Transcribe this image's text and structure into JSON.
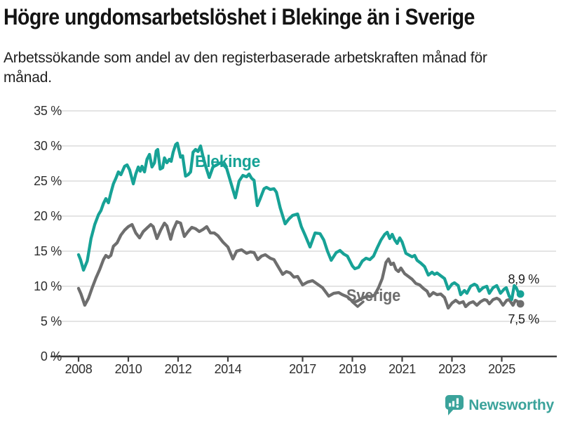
{
  "header": {
    "title": "Högre ungdomsarbetslöshet i Blekinge än i Sverige",
    "subtitle": "Arbetssökande som andel av den registerbaserade arbetskraften månad för månad."
  },
  "colors": {
    "blekinge": "#17A296",
    "sverige": "#6E6E6E",
    "gridline": "#DBDBDB",
    "axis": "#3E3E3E",
    "tick_label": "#2E2E2E",
    "end_label": "#1C1C1C",
    "brand_teal": "#3BA39B"
  },
  "chart_data": {
    "type": "line",
    "unit": "%",
    "grid": "horizontal-only",
    "x_axis": {
      "ticks": [
        2008,
        2010,
        2012,
        2014,
        2017,
        2019,
        2021,
        2023,
        2025
      ],
      "range_years": [
        2008,
        2025.75
      ]
    },
    "y_axis": {
      "tick_values": [
        0,
        5,
        10,
        15,
        20,
        25,
        30,
        35
      ],
      "tick_labels": [
        "0 %",
        "5 %",
        "10 %",
        "15 %",
        "20 %",
        "25 %",
        "30 %",
        "35 %"
      ],
      "range": [
        0,
        35
      ]
    },
    "series": [
      {
        "name": "Sverige",
        "color": "#6E6E6E",
        "end_label": "7,5 %",
        "end_label_side": "below",
        "points": [
          [
            2008,
            9.7
          ],
          [
            2008.1,
            8.9
          ],
          [
            2008.25,
            7.3
          ],
          [
            2008.4,
            8.3
          ],
          [
            2008.55,
            9.8
          ],
          [
            2008.7,
            11.2
          ],
          [
            2008.85,
            12.4
          ],
          [
            2009,
            13.8
          ],
          [
            2009.1,
            14.4
          ],
          [
            2009.2,
            14.1
          ],
          [
            2009.3,
            14.4
          ],
          [
            2009.4,
            15.7
          ],
          [
            2009.55,
            16.2
          ],
          [
            2009.7,
            17.3
          ],
          [
            2009.85,
            18
          ],
          [
            2010,
            18.5
          ],
          [
            2010.15,
            18.8
          ],
          [
            2010.3,
            17.6
          ],
          [
            2010.45,
            16.9
          ],
          [
            2010.6,
            17.8
          ],
          [
            2010.75,
            18.3
          ],
          [
            2010.9,
            18.8
          ],
          [
            2011,
            18.5
          ],
          [
            2011.15,
            16.8
          ],
          [
            2011.3,
            18
          ],
          [
            2011.45,
            19
          ],
          [
            2011.55,
            18.6
          ],
          [
            2011.7,
            16.7
          ],
          [
            2011.8,
            18
          ],
          [
            2011.95,
            19.2
          ],
          [
            2012.1,
            19
          ],
          [
            2012.25,
            17.1
          ],
          [
            2012.4,
            17.8
          ],
          [
            2012.55,
            18.4
          ],
          [
            2012.7,
            18.2
          ],
          [
            2012.85,
            17.8
          ],
          [
            2013,
            18.1
          ],
          [
            2013.15,
            18.5
          ],
          [
            2013.3,
            17.6
          ],
          [
            2013.45,
            17.6
          ],
          [
            2013.6,
            17.2
          ],
          [
            2013.8,
            16.3
          ],
          [
            2014,
            15.6
          ],
          [
            2014.2,
            13.9
          ],
          [
            2014.35,
            15
          ],
          [
            2014.55,
            15.2
          ],
          [
            2014.75,
            14.7
          ],
          [
            2014.9,
            14.9
          ],
          [
            2015.05,
            14.8
          ],
          [
            2015.2,
            13.8
          ],
          [
            2015.35,
            14.3
          ],
          [
            2015.5,
            14.5
          ],
          [
            2015.7,
            14
          ],
          [
            2015.85,
            13.8
          ],
          [
            2016,
            12.9
          ],
          [
            2016.2,
            11.7
          ],
          [
            2016.35,
            12.1
          ],
          [
            2016.5,
            11.9
          ],
          [
            2016.65,
            11.3
          ],
          [
            2016.8,
            11.4
          ],
          [
            2017,
            10.2
          ],
          [
            2017.2,
            10.6
          ],
          [
            2017.4,
            10.8
          ],
          [
            2017.6,
            10.3
          ],
          [
            2017.8,
            9.8
          ],
          [
            2018.05,
            8.6
          ],
          [
            2018.25,
            9
          ],
          [
            2018.45,
            9.1
          ],
          [
            2018.6,
            8.8
          ],
          [
            2018.8,
            8.5
          ],
          [
            2019.05,
            7.7
          ],
          [
            2019.2,
            7.9
          ],
          [
            2019.4,
            8.3
          ],
          [
            2019.6,
            8.6
          ],
          [
            2019.75,
            8.5
          ],
          [
            2019.9,
            8.8
          ],
          [
            2020.05,
            9.8
          ],
          [
            2020.2,
            11.1
          ],
          [
            2020.35,
            13.4
          ],
          [
            2020.45,
            13.9
          ],
          [
            2020.55,
            13.1
          ],
          [
            2020.65,
            13.3
          ],
          [
            2020.75,
            12.4
          ],
          [
            2020.85,
            12.1
          ],
          [
            2020.95,
            12.6
          ],
          [
            2021.1,
            11.8
          ],
          [
            2021.25,
            11.4
          ],
          [
            2021.4,
            11
          ],
          [
            2021.55,
            10.4
          ],
          [
            2021.7,
            10.2
          ],
          [
            2021.85,
            9.7
          ],
          [
            2022,
            9.3
          ],
          [
            2022.1,
            8.6
          ],
          [
            2022.25,
            9.1
          ],
          [
            2022.4,
            8.8
          ],
          [
            2022.55,
            8.9
          ],
          [
            2022.7,
            8.4
          ],
          [
            2022.85,
            6.9
          ],
          [
            2023,
            7.6
          ],
          [
            2023.15,
            8
          ],
          [
            2023.3,
            7.6
          ],
          [
            2023.45,
            7.8
          ],
          [
            2023.55,
            7.1
          ],
          [
            2023.7,
            7.6
          ],
          [
            2023.85,
            7.8
          ],
          [
            2024,
            7.3
          ],
          [
            2024.15,
            7.8
          ],
          [
            2024.3,
            8.1
          ],
          [
            2024.4,
            8
          ],
          [
            2024.5,
            7.5
          ],
          [
            2024.65,
            8.1
          ],
          [
            2024.8,
            8.3
          ],
          [
            2024.9,
            8.1
          ],
          [
            2025.05,
            7.3
          ],
          [
            2025.2,
            8
          ],
          [
            2025.3,
            8.1
          ],
          [
            2025.45,
            7.3
          ],
          [
            2025.55,
            8
          ],
          [
            2025.65,
            7.8
          ],
          [
            2025.75,
            7.5
          ]
        ]
      },
      {
        "name": "Blekinge",
        "color": "#17A296",
        "end_label": "8,9 %",
        "end_label_side": "above",
        "points": [
          [
            2008,
            14.5
          ],
          [
            2008.08,
            13.8
          ],
          [
            2008.2,
            12.3
          ],
          [
            2008.35,
            13.6
          ],
          [
            2008.5,
            16.8
          ],
          [
            2008.65,
            18.8
          ],
          [
            2008.8,
            20.2
          ],
          [
            2008.9,
            20.8
          ],
          [
            2009,
            21.8
          ],
          [
            2009.1,
            22.5
          ],
          [
            2009.2,
            21.9
          ],
          [
            2009.3,
            23.3
          ],
          [
            2009.4,
            24.6
          ],
          [
            2009.5,
            25.4
          ],
          [
            2009.6,
            26.3
          ],
          [
            2009.7,
            25.9
          ],
          [
            2009.85,
            27.1
          ],
          [
            2009.95,
            27.3
          ],
          [
            2010.05,
            26.6
          ],
          [
            2010.2,
            24.6
          ],
          [
            2010.3,
            26
          ],
          [
            2010.4,
            27
          ],
          [
            2010.48,
            26.4
          ],
          [
            2010.55,
            27.1
          ],
          [
            2010.65,
            26.3
          ],
          [
            2010.75,
            28.1
          ],
          [
            2010.85,
            28.8
          ],
          [
            2010.95,
            27
          ],
          [
            2011.05,
            27.6
          ],
          [
            2011.12,
            29.3
          ],
          [
            2011.18,
            29.5
          ],
          [
            2011.28,
            26.7
          ],
          [
            2011.38,
            26.9
          ],
          [
            2011.45,
            28.3
          ],
          [
            2011.55,
            27.6
          ],
          [
            2011.65,
            28.1
          ],
          [
            2011.72,
            27.8
          ],
          [
            2011.8,
            29.1
          ],
          [
            2011.9,
            30.2
          ],
          [
            2011.97,
            30.4
          ],
          [
            2012.1,
            28.4
          ],
          [
            2012.18,
            28.6
          ],
          [
            2012.3,
            25.7
          ],
          [
            2012.4,
            25.9
          ],
          [
            2012.5,
            26.3
          ],
          [
            2012.6,
            29.1
          ],
          [
            2012.7,
            29.5
          ],
          [
            2012.8,
            29.2
          ],
          [
            2012.9,
            30
          ],
          [
            2013,
            28.5
          ],
          [
            2013.1,
            27.2
          ],
          [
            2013.25,
            25.5
          ],
          [
            2013.4,
            27
          ],
          [
            2013.55,
            27.3
          ],
          [
            2013.7,
            27.6
          ],
          [
            2013.85,
            27.2
          ],
          [
            2013.95,
            26.8
          ],
          [
            2014.1,
            25
          ],
          [
            2014.3,
            22.6
          ],
          [
            2014.45,
            25
          ],
          [
            2014.6,
            25.8
          ],
          [
            2014.75,
            25.6
          ],
          [
            2014.85,
            26
          ],
          [
            2014.95,
            25.4
          ],
          [
            2015.05,
            25.1
          ],
          [
            2015.18,
            21.5
          ],
          [
            2015.3,
            22.5
          ],
          [
            2015.45,
            23.9
          ],
          [
            2015.55,
            24.1
          ],
          [
            2015.7,
            23.8
          ],
          [
            2015.85,
            23.9
          ],
          [
            2015.95,
            23.4
          ],
          [
            2016.1,
            21.2
          ],
          [
            2016.3,
            18.9
          ],
          [
            2016.45,
            19.6
          ],
          [
            2016.6,
            20.1
          ],
          [
            2016.8,
            20.3
          ],
          [
            2016.95,
            18.5
          ],
          [
            2017.1,
            17.3
          ],
          [
            2017.3,
            15.6
          ],
          [
            2017.5,
            17.6
          ],
          [
            2017.7,
            17.5
          ],
          [
            2017.85,
            16.6
          ],
          [
            2018,
            15
          ],
          [
            2018.15,
            13.7
          ],
          [
            2018.35,
            14.8
          ],
          [
            2018.5,
            15.1
          ],
          [
            2018.65,
            14.6
          ],
          [
            2018.8,
            14.3
          ],
          [
            2019,
            12.9
          ],
          [
            2019.1,
            12.5
          ],
          [
            2019.25,
            12.7
          ],
          [
            2019.4,
            13.6
          ],
          [
            2019.55,
            14
          ],
          [
            2019.7,
            13.8
          ],
          [
            2019.85,
            14.3
          ],
          [
            2020,
            15.5
          ],
          [
            2020.15,
            16.6
          ],
          [
            2020.3,
            17.4
          ],
          [
            2020.4,
            17.7
          ],
          [
            2020.5,
            16.8
          ],
          [
            2020.6,
            17.4
          ],
          [
            2020.7,
            16.6
          ],
          [
            2020.8,
            16.1
          ],
          [
            2020.9,
            16.9
          ],
          [
            2021,
            16.3
          ],
          [
            2021.15,
            14.7
          ],
          [
            2021.3,
            14.4
          ],
          [
            2021.4,
            14.2
          ],
          [
            2021.5,
            14.4
          ],
          [
            2021.6,
            13.7
          ],
          [
            2021.75,
            13.3
          ],
          [
            2021.9,
            12.8
          ],
          [
            2022.05,
            11.6
          ],
          [
            2022.2,
            12
          ],
          [
            2022.3,
            11.7
          ],
          [
            2022.4,
            11.9
          ],
          [
            2022.55,
            11.5
          ],
          [
            2022.7,
            11.1
          ],
          [
            2022.85,
            9.6
          ],
          [
            2023,
            10.3
          ],
          [
            2023.1,
            10.5
          ],
          [
            2023.25,
            10.1
          ],
          [
            2023.35,
            8.8
          ],
          [
            2023.5,
            9.4
          ],
          [
            2023.6,
            9
          ],
          [
            2023.75,
            10
          ],
          [
            2023.9,
            10.3
          ],
          [
            2024,
            10.1
          ],
          [
            2024.1,
            9.3
          ],
          [
            2024.25,
            9.8
          ],
          [
            2024.4,
            10
          ],
          [
            2024.5,
            9
          ],
          [
            2024.65,
            9.8
          ],
          [
            2024.8,
            10.1
          ],
          [
            2024.95,
            9
          ],
          [
            2025.1,
            9.6
          ],
          [
            2025.18,
            9.8
          ],
          [
            2025.3,
            8.6
          ],
          [
            2025.4,
            8.1
          ],
          [
            2025.5,
            10.1
          ],
          [
            2025.58,
            9.8
          ],
          [
            2025.68,
            9
          ],
          [
            2025.75,
            8.9
          ]
        ]
      }
    ]
  },
  "footer": {
    "brand": "Newsworthy"
  }
}
